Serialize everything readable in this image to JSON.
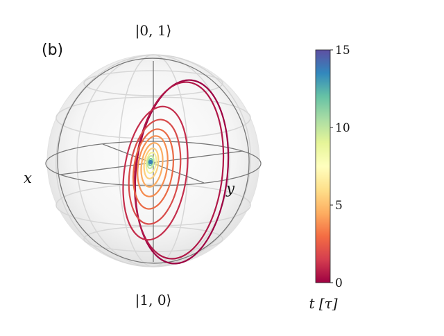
{
  "panel_label": "(b)",
  "state_labels": {
    "top": "|0, 1⟩",
    "bottom": "|1, 0⟩"
  },
  "axis_labels": {
    "x": "x",
    "y": "y"
  },
  "colorbar": {
    "label": "t [τ]",
    "ticks": [
      "0",
      "5",
      "10",
      "15"
    ],
    "range": [
      0,
      15
    ],
    "colormap": "Spectral",
    "colors": [
      "#9e0142",
      "#d53e4f",
      "#f46d43",
      "#fdae61",
      "#fee08b",
      "#ffffbf",
      "#e6f598",
      "#abdda4",
      "#66c2a5",
      "#3288bd",
      "#5e4fa2"
    ]
  },
  "sphere": {
    "frame_color": "#777777",
    "shell_color": "#dddddd"
  }
}
